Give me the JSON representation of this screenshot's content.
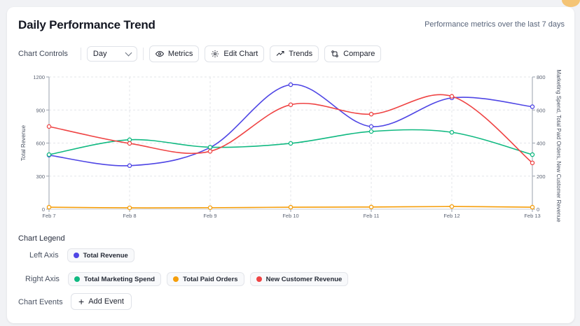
{
  "header": {
    "title": "Daily Performance Trend",
    "subtitle": "Performance metrics over the last 7 days"
  },
  "controls": {
    "label": "Chart Controls",
    "granularity": "Day",
    "metrics_label": "Metrics",
    "edit_label": "Edit Chart",
    "trends_label": "Trends",
    "compare_label": "Compare"
  },
  "legend": {
    "title": "Chart Legend",
    "left_axis_label": "Left Axis",
    "right_axis_label": "Right Axis",
    "left_items": [
      {
        "name": "Total Revenue",
        "color": "#4f46e5"
      }
    ],
    "right_items": [
      {
        "name": "Total Marketing Spend",
        "color": "#10b981"
      },
      {
        "name": "Total Paid Orders",
        "color": "#f59e0b"
      },
      {
        "name": "New Customer Revenue",
        "color": "#ef4444"
      }
    ]
  },
  "events": {
    "label": "Chart Events",
    "add_label": "Add Event"
  },
  "chart_data": {
    "type": "line",
    "categories": [
      "Feb 7",
      "Feb 8",
      "Feb 9",
      "Feb 10",
      "Feb 11",
      "Feb 12",
      "Feb 13"
    ],
    "ylabel": "Total Revenue",
    "ylabel_right": "Marketing Spend, Total Paid Orders, New Customer Revenue",
    "ylim": [
      0,
      1200
    ],
    "yticks": [
      0,
      300,
      600,
      900,
      1200
    ],
    "ylim_right": [
      0,
      800
    ],
    "yticks_right": [
      0,
      200,
      400,
      600,
      800
    ],
    "grid": true,
    "series": [
      {
        "name": "Total Revenue",
        "axis": "left",
        "color": "#4f46e5",
        "values": [
          490,
          395,
          560,
          1130,
          750,
          1010,
          930
        ]
      },
      {
        "name": "Total Marketing Spend",
        "axis": "right",
        "color": "#10b981",
        "values": [
          330,
          420,
          375,
          398,
          470,
          465,
          330
        ]
      },
      {
        "name": "Total Paid Orders",
        "axis": "right",
        "color": "#f59e0b",
        "values": [
          12,
          8,
          9,
          12,
          13,
          16,
          12
        ]
      },
      {
        "name": "New Customer Revenue",
        "axis": "right",
        "color": "#ef4444",
        "values": [
          500,
          398,
          350,
          632,
          575,
          683,
          280
        ]
      }
    ]
  }
}
